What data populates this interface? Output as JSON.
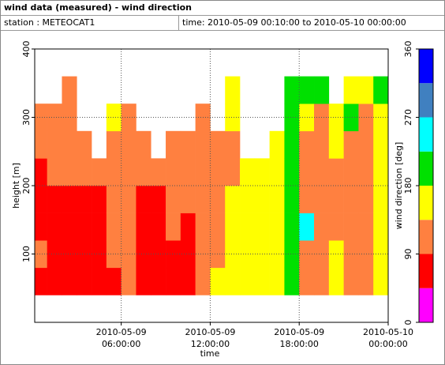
{
  "header": {
    "title": "wind data (measured) - wind direction",
    "station": "station : METEOCAT1",
    "time": "time: 2010-05-09 00:10:00 to 2010-05-10 00:00:00"
  },
  "chart_data": {
    "type": "heatmap",
    "x_label": "time",
    "y_label": "height [m]",
    "colorbar_label": "wind direction [deg]",
    "x": [
      0.5,
      1.5,
      2.5,
      3.5,
      4.5,
      5.5,
      6.5,
      7.5,
      8.5,
      9.5,
      10.5,
      11.5,
      12.5,
      13.5,
      14.5,
      15.5,
      16.5,
      17.5,
      18.5,
      19.5,
      20.5,
      21.5,
      22.5,
      23.5
    ],
    "y": [
      60,
      100,
      140,
      180,
      220,
      260,
      300,
      340
    ],
    "z": [
      [
        70,
        110,
        70,
        70,
        70,
        110,
        110,
        null
      ],
      [
        70,
        70,
        70,
        70,
        110,
        110,
        110,
        null
      ],
      [
        70,
        70,
        70,
        70,
        110,
        110,
        110,
        110
      ],
      [
        70,
        70,
        70,
        70,
        110,
        110,
        null,
        null
      ],
      [
        70,
        70,
        70,
        70,
        110,
        null,
        null,
        null
      ],
      [
        70,
        110,
        110,
        110,
        110,
        110,
        160,
        null
      ],
      [
        110,
        110,
        110,
        110,
        110,
        110,
        110,
        null
      ],
      [
        70,
        70,
        70,
        70,
        110,
        110,
        null,
        null
      ],
      [
        70,
        70,
        70,
        70,
        110,
        null,
        null,
        null
      ],
      [
        70,
        70,
        110,
        110,
        110,
        110,
        null,
        null
      ],
      [
        70,
        70,
        70,
        110,
        110,
        110,
        null,
        null
      ],
      [
        110,
        110,
        110,
        110,
        110,
        110,
        110,
        null
      ],
      [
        160,
        110,
        110,
        110,
        110,
        110,
        null,
        null
      ],
      [
        160,
        160,
        160,
        160,
        110,
        110,
        160,
        160
      ],
      [
        160,
        160,
        160,
        160,
        160,
        null,
        null,
        null
      ],
      [
        160,
        160,
        160,
        160,
        160,
        null,
        null,
        null
      ],
      [
        160,
        160,
        160,
        160,
        160,
        160,
        null,
        null
      ],
      [
        200,
        200,
        200,
        200,
        200,
        200,
        200,
        200
      ],
      [
        110,
        110,
        250,
        110,
        110,
        110,
        160,
        200
      ],
      [
        110,
        110,
        110,
        110,
        110,
        110,
        110,
        200
      ],
      [
        160,
        160,
        110,
        110,
        110,
        160,
        160,
        null
      ],
      [
        110,
        110,
        110,
        110,
        110,
        110,
        200,
        160
      ],
      [
        110,
        110,
        110,
        110,
        110,
        110,
        110,
        160
      ],
      [
        160,
        160,
        160,
        160,
        160,
        160,
        160,
        200
      ]
    ],
    "xlim": [
      0.1667,
      24
    ],
    "xticks": [
      {
        "value": 6,
        "label": [
          "2010-05-09",
          "06:00:00"
        ]
      },
      {
        "value": 12,
        "label": [
          "2010-05-09",
          "12:00:00"
        ]
      },
      {
        "value": 18,
        "label": [
          "2010-05-09",
          "18:00:00"
        ]
      },
      {
        "value": 24,
        "label": [
          "2010-05-10",
          "00:00:00"
        ]
      }
    ],
    "ylim": [
      0,
      400
    ],
    "yticks": [
      100,
      200,
      300,
      400
    ],
    "levels": [
      0,
      45,
      90,
      135,
      180,
      225,
      270,
      315,
      360
    ],
    "colors": [
      "#ff00ff",
      "#ff0000",
      "#ff8040",
      "#ffff00",
      "#00e000",
      "#00ffff",
      "#4080c0",
      "#0000ff"
    ],
    "zlim": [
      0,
      360
    ],
    "zticks": [
      0,
      90,
      180,
      270,
      360
    ],
    "grid": true
  }
}
